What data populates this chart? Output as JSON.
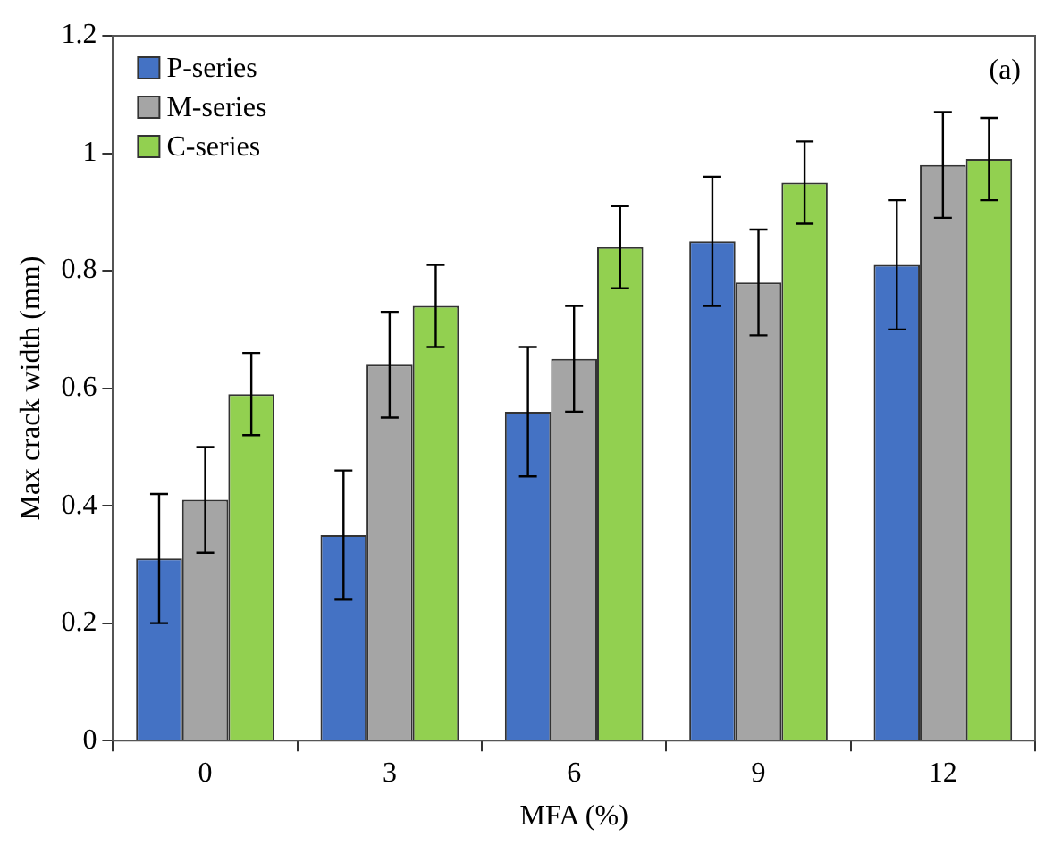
{
  "chart_data": {
    "type": "bar",
    "xlabel": "MFA (%)",
    "ylabel": "Max crack width (mm)",
    "annotations": [
      "(a)"
    ],
    "categories": [
      "0",
      "3",
      "6",
      "9",
      "12"
    ],
    "series": [
      {
        "name": "P-series",
        "color": "#4472c4",
        "values": [
          0.31,
          0.35,
          0.56,
          0.85,
          0.81
        ],
        "errors": [
          0.11,
          0.11,
          0.11,
          0.11,
          0.11
        ]
      },
      {
        "name": "M-series",
        "color": "#a5a5a5",
        "values": [
          0.41,
          0.64,
          0.65,
          0.78,
          0.98
        ],
        "errors": [
          0.09,
          0.09,
          0.09,
          0.09,
          0.09
        ]
      },
      {
        "name": "C-series",
        "color": "#92d050",
        "values": [
          0.59,
          0.74,
          0.84,
          0.95,
          0.99
        ],
        "errors": [
          0.07,
          0.07,
          0.07,
          0.07,
          0.07
        ]
      }
    ],
    "ylim": [
      0,
      1.2
    ],
    "yticks": [
      0,
      0.2,
      0.4,
      0.6,
      0.8,
      1,
      1.2
    ],
    "legend": "top left"
  }
}
